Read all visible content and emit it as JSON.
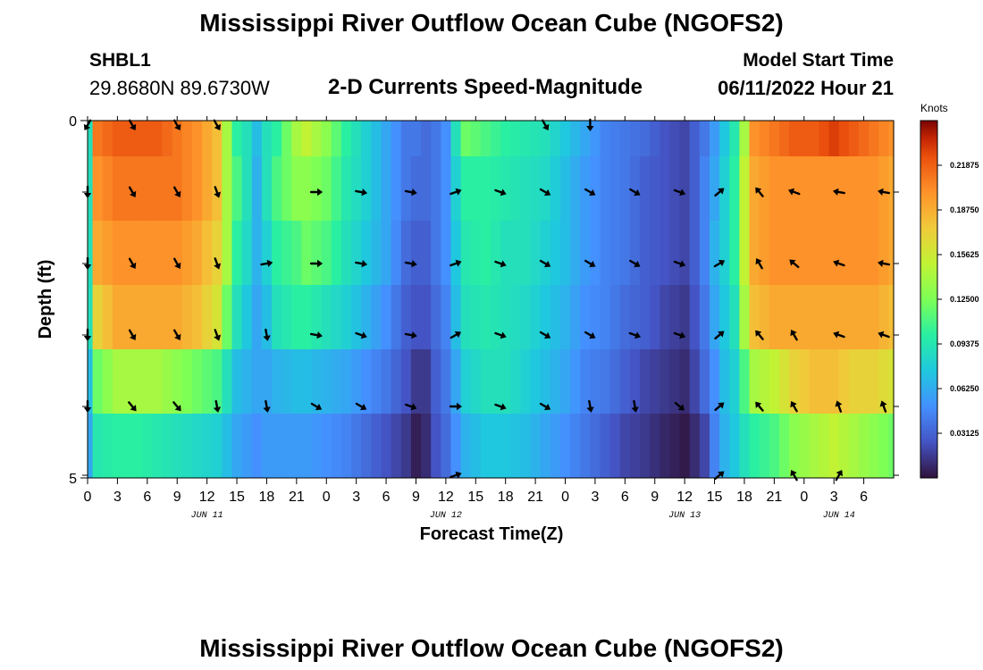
{
  "header": {
    "title": "Mississippi River Outflow Ocean Cube (NGOFS2)",
    "station_id": "SHBL1",
    "station_coords": "29.8680N  89.6730W",
    "subtitle": "2-D Currents Speed-Magnitude",
    "model_start_label": "Model Start Time",
    "model_start_value": "06/11/2022 Hour 21"
  },
  "footer": {
    "second_title": "Mississippi River Outflow Ocean Cube (NGOFS2)"
  },
  "chart_data": {
    "type": "heatmap",
    "xlabel": "Forecast Time(Z)",
    "ylabel": "Depth (ft)",
    "colorbar_label": "Knots",
    "x_range_hours": [
      0,
      81
    ],
    "y_range": [
      0,
      5
    ],
    "x_ticks": [
      "0",
      "3",
      "6",
      "9",
      "12",
      "15",
      "18",
      "21",
      "0",
      "3",
      "6",
      "9",
      "12",
      "15",
      "18",
      "21",
      "0",
      "3",
      "6",
      "9",
      "12",
      "15",
      "18",
      "21",
      "0",
      "3",
      "6"
    ],
    "y_ticks": [
      "0",
      "5"
    ],
    "date_labels": [
      {
        "text": "JUN 11",
        "hour": 12
      },
      {
        "text": "JUN 12",
        "hour": 36
      },
      {
        "text": "JUN 13",
        "hour": 60
      },
      {
        "text": "JUN 14",
        "hour": 75.5
      }
    ],
    "colorbar": {
      "min": 0,
      "max": 0.25,
      "ticks": [
        "0.21875",
        "0.18750",
        "0.15625",
        "0.12500",
        "0.09375",
        "0.06250",
        "0.03125"
      ],
      "tick_values": [
        0.21875,
        0.1875,
        0.15625,
        0.125,
        0.09375,
        0.0625,
        0.03125
      ]
    },
    "speed_key_hours": [
      0,
      1,
      3,
      5,
      7,
      9,
      11,
      13,
      14,
      15,
      16,
      17,
      18,
      19,
      21,
      22,
      24,
      26,
      28,
      30,
      32,
      33,
      34,
      35,
      36,
      37,
      38,
      40,
      42,
      44,
      46,
      48,
      50,
      52,
      54,
      56,
      58,
      60,
      61,
      62,
      63,
      64,
      65,
      66,
      67,
      69,
      71,
      73,
      75,
      77,
      79,
      81
    ],
    "speed_rows": [
      [
        0.09,
        0.21,
        0.22,
        0.22,
        0.22,
        0.21,
        0.2,
        0.18,
        0.14,
        0.1,
        0.09,
        0.07,
        0.09,
        0.1,
        0.14,
        0.15,
        0.13,
        0.1,
        0.08,
        0.06,
        0.04,
        0.04,
        0.035,
        0.04,
        0.05,
        0.09,
        0.12,
        0.11,
        0.1,
        0.095,
        0.09,
        0.075,
        0.06,
        0.045,
        0.04,
        0.035,
        0.025,
        0.02,
        0.03,
        0.04,
        0.055,
        0.075,
        0.095,
        0.14,
        0.2,
        0.21,
        0.22,
        0.22,
        0.23,
        0.22,
        0.21,
        0.2
      ],
      [
        0.09,
        0.2,
        0.21,
        0.21,
        0.21,
        0.21,
        0.2,
        0.18,
        0.14,
        0.11,
        0.09,
        0.065,
        0.09,
        0.11,
        0.13,
        0.13,
        0.12,
        0.095,
        0.08,
        0.06,
        0.04,
        0.035,
        0.035,
        0.04,
        0.05,
        0.08,
        0.1,
        0.1,
        0.095,
        0.09,
        0.085,
        0.07,
        0.055,
        0.045,
        0.04,
        0.03,
        0.025,
        0.02,
        0.03,
        0.045,
        0.06,
        0.08,
        0.1,
        0.15,
        0.19,
        0.2,
        0.2,
        0.2,
        0.2,
        0.2,
        0.2,
        0.19
      ],
      [
        0.09,
        0.19,
        0.2,
        0.2,
        0.2,
        0.2,
        0.19,
        0.17,
        0.14,
        0.1,
        0.085,
        0.065,
        0.08,
        0.1,
        0.11,
        0.12,
        0.11,
        0.09,
        0.075,
        0.06,
        0.035,
        0.03,
        0.03,
        0.04,
        0.05,
        0.075,
        0.095,
        0.1,
        0.09,
        0.09,
        0.08,
        0.07,
        0.055,
        0.045,
        0.04,
        0.03,
        0.025,
        0.02,
        0.03,
        0.045,
        0.065,
        0.08,
        0.1,
        0.15,
        0.19,
        0.2,
        0.2,
        0.2,
        0.2,
        0.2,
        0.2,
        0.19
      ],
      [
        0.09,
        0.17,
        0.19,
        0.19,
        0.19,
        0.19,
        0.18,
        0.16,
        0.12,
        0.09,
        0.075,
        0.06,
        0.07,
        0.09,
        0.1,
        0.1,
        0.09,
        0.08,
        0.065,
        0.05,
        0.03,
        0.025,
        0.025,
        0.035,
        0.045,
        0.07,
        0.09,
        0.095,
        0.09,
        0.085,
        0.075,
        0.065,
        0.05,
        0.045,
        0.035,
        0.03,
        0.02,
        0.015,
        0.025,
        0.04,
        0.06,
        0.075,
        0.09,
        0.14,
        0.18,
        0.19,
        0.19,
        0.19,
        0.19,
        0.19,
        0.19,
        0.18
      ],
      [
        0.07,
        0.12,
        0.14,
        0.14,
        0.14,
        0.13,
        0.12,
        0.11,
        0.09,
        0.07,
        0.065,
        0.06,
        0.06,
        0.065,
        0.07,
        0.07,
        0.065,
        0.06,
        0.05,
        0.04,
        0.025,
        0.015,
        0.015,
        0.03,
        0.04,
        0.06,
        0.08,
        0.09,
        0.09,
        0.08,
        0.07,
        0.06,
        0.045,
        0.04,
        0.03,
        0.02,
        0.015,
        0.01,
        0.02,
        0.035,
        0.05,
        0.07,
        0.08,
        0.11,
        0.14,
        0.15,
        0.17,
        0.18,
        0.18,
        0.17,
        0.17,
        0.16
      ],
      [
        0.06,
        0.095,
        0.1,
        0.1,
        0.095,
        0.09,
        0.085,
        0.08,
        0.07,
        0.06,
        0.055,
        0.05,
        0.055,
        0.055,
        0.055,
        0.055,
        0.05,
        0.045,
        0.035,
        0.025,
        0.015,
        0.005,
        0.01,
        0.025,
        0.035,
        0.05,
        0.065,
        0.075,
        0.075,
        0.07,
        0.06,
        0.05,
        0.04,
        0.03,
        0.02,
        0.015,
        0.008,
        0.003,
        0.01,
        0.02,
        0.045,
        0.065,
        0.075,
        0.09,
        0.1,
        0.11,
        0.13,
        0.14,
        0.15,
        0.14,
        0.13,
        0.12
      ]
    ],
    "vector_hours": [
      0,
      4.5,
      9,
      13,
      18,
      23,
      27.5,
      32.5,
      37,
      41.5,
      46,
      50.5,
      55,
      59.5,
      63.5,
      67.5,
      71,
      75.5,
      80
    ],
    "vector_rows": [
      [
        120,
        60,
        60,
        60,
        null,
        null,
        null,
        null,
        null,
        null,
        60,
        90,
        null,
        null,
        null,
        null,
        null,
        null,
        null
      ],
      [
        90,
        60,
        60,
        70,
        null,
        0,
        10,
        10,
        -20,
        20,
        30,
        30,
        30,
        20,
        -40,
        -130,
        -160,
        -170,
        -170
      ],
      [
        90,
        60,
        60,
        70,
        -10,
        0,
        10,
        10,
        -20,
        20,
        30,
        30,
        30,
        20,
        -30,
        -120,
        -140,
        -160,
        -170
      ],
      [
        90,
        60,
        60,
        70,
        80,
        10,
        20,
        10,
        -30,
        20,
        30,
        30,
        20,
        20,
        -40,
        -130,
        -120,
        -160,
        -160
      ],
      [
        90,
        50,
        50,
        80,
        80,
        30,
        30,
        20,
        0,
        20,
        30,
        80,
        80,
        40,
        -40,
        -130,
        -120,
        -110,
        -110
      ],
      [
        null,
        null,
        null,
        null,
        null,
        null,
        null,
        null,
        -20,
        null,
        null,
        null,
        null,
        null,
        -40,
        null,
        -120,
        -60,
        null
      ]
    ]
  }
}
